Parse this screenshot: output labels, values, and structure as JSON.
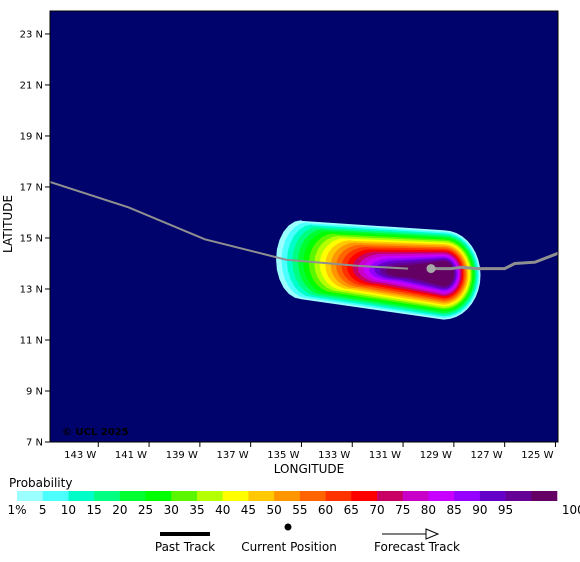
{
  "map": {
    "lat_ticks": [
      {
        "value": 7,
        "label": "7 N"
      },
      {
        "value": 9,
        "label": "9 N"
      },
      {
        "value": 11,
        "label": "11 N"
      },
      {
        "value": 13,
        "label": "13 N"
      },
      {
        "value": 15,
        "label": "15 N"
      },
      {
        "value": 17,
        "label": "17 N"
      },
      {
        "value": 19,
        "label": "19 N"
      },
      {
        "value": 21,
        "label": "21 N"
      },
      {
        "value": 23,
        "label": "23 N"
      }
    ],
    "lon_ticks": [
      {
        "value": -143,
        "label": "143 W"
      },
      {
        "value": -141,
        "label": "141 W"
      },
      {
        "value": -139,
        "label": "139 W"
      },
      {
        "value": -137,
        "label": "137 W"
      },
      {
        "value": -135,
        "label": "135 W"
      },
      {
        "value": -133,
        "label": "133 W"
      },
      {
        "value": -131,
        "label": "131 W"
      },
      {
        "value": -129,
        "label": "129 W"
      },
      {
        "value": -127,
        "label": "127 W"
      },
      {
        "value": -125,
        "label": "125 W"
      }
    ],
    "lat_range": [
      7,
      23.9
    ],
    "lon_range": [
      -144.9,
      -124.9
    ],
    "xlabel": "LONGITUDE",
    "ylabel": "LATITUDE",
    "copyright": "© UCL 2025",
    "ocean_color": "#00036b",
    "past_track": [
      [
        -144.9,
        17.2
      ],
      [
        -141.8,
        16.2
      ],
      [
        -138.8,
        14.95
      ],
      [
        -135.6,
        14.15
      ],
      [
        -132.7,
        13.9
      ],
      [
        -130.8,
        13.8
      ]
    ],
    "current_position": [
      -129.9,
      13.8
    ],
    "forecast_track": [
      [
        -129.9,
        13.8
      ],
      [
        -129.1,
        13.8
      ],
      [
        -128.7,
        13.85
      ],
      [
        -128.1,
        13.8
      ],
      [
        -127.0,
        13.8
      ],
      [
        -126.6,
        14.0
      ],
      [
        -125.8,
        14.05
      ],
      [
        -124.9,
        14.4
      ]
    ]
  },
  "colorbar": {
    "title": "Probability",
    "labels": [
      "1%",
      "5",
      "10",
      "15",
      "20",
      "25",
      "30",
      "35",
      "40",
      "45",
      "50",
      "55",
      "60",
      "65",
      "70",
      "75",
      "80",
      "85",
      "90",
      "95",
      "100%"
    ],
    "colors": [
      "#9cffff",
      "#4bffff",
      "#00ffc8",
      "#00ff80",
      "#00ff30",
      "#00ff00",
      "#5af700",
      "#b4ff00",
      "#ffff00",
      "#ffc800",
      "#ff9600",
      "#ff6400",
      "#ff3200",
      "#ff0000",
      "#c80064",
      "#c800c8",
      "#c800ff",
      "#9600ff",
      "#6400c8",
      "#640096",
      "#640064"
    ]
  },
  "legend": {
    "past_track": "Past Track",
    "current_position": "Current Position",
    "forecast_track": "Forecast Track"
  }
}
